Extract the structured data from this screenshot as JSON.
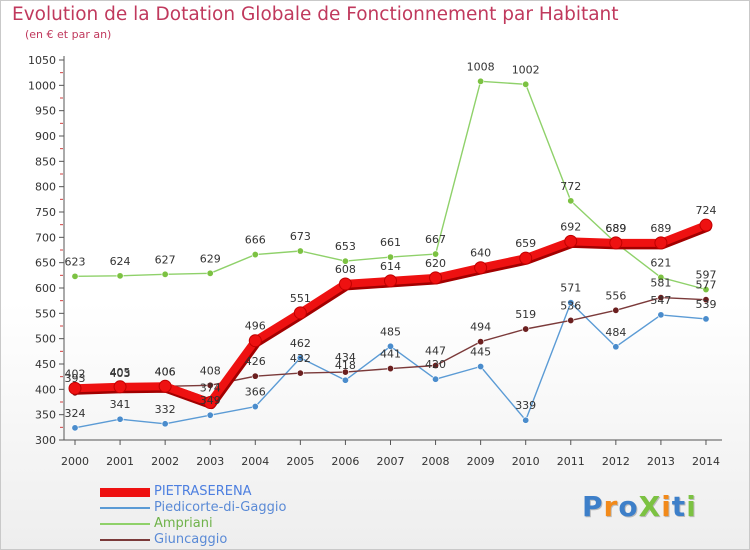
{
  "title": "Evolution de la Dotation Globale de Fonctionnement par Habitant",
  "subtitle": "(en € et par an)",
  "logo": {
    "text": "ProXiti",
    "letters": [
      {
        "char": "P",
        "color": "#3d7fc9"
      },
      {
        "char": "r",
        "color": "#f28a1a"
      },
      {
        "char": "o",
        "color": "#3d7fc9"
      },
      {
        "char": "X",
        "color": "#7cc242"
      },
      {
        "char": "i",
        "color": "#f28a1a"
      },
      {
        "char": "t",
        "color": "#3d7fc9"
      },
      {
        "char": "i",
        "color": "#7cc242"
      }
    ]
  },
  "chart_data": {
    "type": "line",
    "title": "Evolution de la Dotation Globale de Fonctionnement par Habitant",
    "xlabel": "",
    "ylabel": "",
    "x": [
      "2000",
      "2001",
      "2002",
      "2003",
      "2004",
      "2005",
      "2006",
      "2007",
      "2008",
      "2009",
      "2010",
      "2011",
      "2012",
      "2013",
      "2014"
    ],
    "ylim": [
      300,
      1050
    ],
    "yticks": [
      300,
      350,
      400,
      450,
      500,
      550,
      600,
      650,
      700,
      750,
      800,
      850,
      900,
      950,
      1000,
      1050
    ],
    "grid": false,
    "legend_position": "bottom-left",
    "series": [
      {
        "name": "PIETRASERENA",
        "color": "#ee1111",
        "marker_fill": "#ee1111",
        "label_color": "#333333",
        "emphasis": true,
        "values": [
          402,
          405,
          406,
          374,
          496,
          551,
          608,
          614,
          620,
          640,
          659,
          692,
          689,
          689,
          724
        ],
        "labels": [
          "402",
          "405",
          "406",
          "374",
          "496",
          "551",
          "608",
          "614",
          "620",
          "640",
          "659",
          "692",
          "689",
          "689",
          "724"
        ]
      },
      {
        "name": "Piedicorte-di-Gaggio",
        "color": "#5b9bd5",
        "marker_fill": "#4a8ccc",
        "label_color": "#333333",
        "emphasis": false,
        "values": [
          324,
          341,
          332,
          349,
          366,
          462,
          418,
          485,
          420,
          445,
          339,
          571,
          484,
          547,
          539
        ],
        "labels": [
          "324",
          "341",
          "332",
          "349",
          "366",
          "462",
          "418",
          "485",
          "420",
          "445",
          "339",
          "571",
          "484",
          "547",
          "539"
        ]
      },
      {
        "name": "Ampriani",
        "color": "#8fd16a",
        "marker_fill": "#7cc242",
        "label_color": "#333333",
        "emphasis": false,
        "values": [
          623,
          624,
          627,
          629,
          666,
          673,
          653,
          661,
          667,
          1008,
          1002,
          772,
          689,
          621,
          597
        ],
        "labels": [
          "623",
          "624",
          "627",
          "629",
          "666",
          "673",
          "653",
          "661",
          "667",
          "1008",
          "1002",
          "772",
          "689",
          "621",
          "597"
        ]
      },
      {
        "name": "Giuncaggio",
        "color": "#7b3a3a",
        "marker_fill": "#6b1f1f",
        "label_color": "#333333",
        "emphasis": false,
        "values": [
          393,
          403,
          406,
          408,
          426,
          432,
          434,
          441,
          447,
          494,
          519,
          536,
          556,
          581,
          577
        ],
        "labels": [
          "393",
          "403",
          "406",
          "408",
          "426",
          "432",
          "434",
          "441",
          "447",
          "494",
          "519",
          "536",
          "556",
          "581",
          "577"
        ]
      }
    ]
  }
}
